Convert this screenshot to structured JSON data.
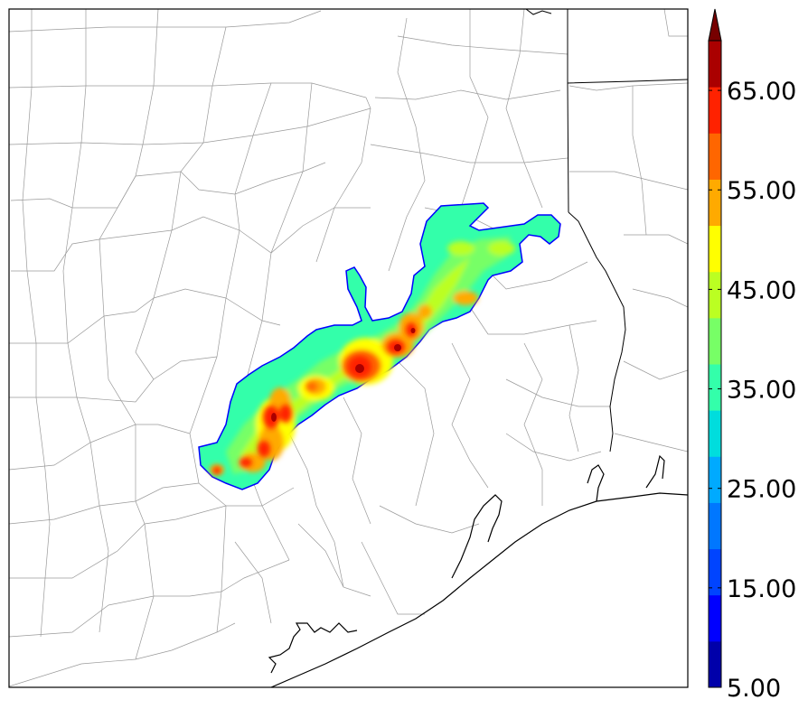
{
  "colorbar": {
    "ticks": [
      {
        "value": "5.00"
      },
      {
        "value": "15.00"
      },
      {
        "value": "25.00"
      },
      {
        "value": "35.00"
      },
      {
        "value": "45.00"
      },
      {
        "value": "55.00"
      },
      {
        "value": "65.00"
      }
    ],
    "min": 5,
    "max": 70,
    "step": 5,
    "extend": "max",
    "colors": [
      "#0000aa",
      "#0000ff",
      "#0044ff",
      "#0077ff",
      "#00aaff",
      "#00dddd",
      "#33ffaa",
      "#77ff66",
      "#bbff22",
      "#ffff00",
      "#ffaa00",
      "#ff6600",
      "#ff2200",
      "#aa0000"
    ],
    "over_color": "#770000"
  },
  "map": {
    "colors": {
      "county_lines": "#999999",
      "state_lines": "#000000",
      "coastline": "#000000",
      "contour_edge": "#0000ff"
    },
    "field_range": [
      5,
      70
    ],
    "field_orientation": "southwest-northeast band"
  }
}
